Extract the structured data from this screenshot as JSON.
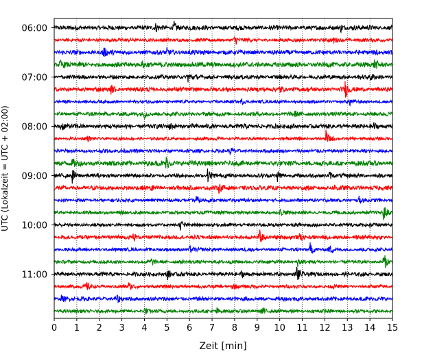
{
  "chart_data": {
    "type": "line",
    "title": "",
    "xlabel": "Zeit  [min]",
    "ylabel": "UTC (Lokalzeit = UTC + 02:00)",
    "xlim": [
      0,
      15
    ],
    "x_ticks": [
      0,
      1,
      2,
      3,
      4,
      5,
      6,
      7,
      8,
      9,
      10,
      11,
      12,
      13,
      14,
      15
    ],
    "grid": "vertical dotted",
    "legend": "none",
    "y_tick_labels": [
      "06:00",
      "07:00",
      "08:00",
      "09:00",
      "10:00",
      "11:00"
    ],
    "trace_color_cycle": [
      "#000000",
      "#ff0000",
      "#0000ff",
      "#008000"
    ],
    "row_duration_min": 15,
    "rows": [
      {
        "start": "06:00",
        "amp": 0.45,
        "events": [
          {
            "t": 5.3,
            "a": 0.9
          },
          {
            "t": 4.5,
            "a": 0.45
          },
          {
            "t": 12.7,
            "a": 0.55
          }
        ]
      },
      {
        "start": "06:15",
        "amp": 0.35,
        "events": [
          {
            "t": 8.0,
            "a": 0.8
          },
          {
            "t": 12.4,
            "a": 0.45
          }
        ]
      },
      {
        "start": "06:30",
        "amp": 0.45,
        "events": [
          {
            "t": 2.15,
            "a": 0.9
          },
          {
            "t": 5.0,
            "a": 0.55
          },
          {
            "t": 14.3,
            "a": 0.5
          }
        ]
      },
      {
        "start": "06:45",
        "amp": 0.5,
        "events": [
          {
            "t": 0.25,
            "a": 0.6
          },
          {
            "t": 3.9,
            "a": 0.55
          },
          {
            "t": 14.2,
            "a": 0.6
          }
        ]
      },
      {
        "start": "07:00",
        "amp": 0.4,
        "events": [
          {
            "t": 5.9,
            "a": 0.95
          },
          {
            "t": 14.0,
            "a": 0.55
          }
        ]
      },
      {
        "start": "07:15",
        "amp": 0.45,
        "events": [
          {
            "t": 12.9,
            "a": 1.1
          },
          {
            "t": 2.5,
            "a": 0.6
          },
          {
            "t": 10.0,
            "a": 0.5
          }
        ]
      },
      {
        "start": "07:30",
        "amp": 0.3,
        "events": [
          {
            "t": 13.1,
            "a": 0.5
          },
          {
            "t": 8.3,
            "a": 0.45
          }
        ]
      },
      {
        "start": "07:45",
        "amp": 0.4,
        "events": [
          {
            "t": 4.0,
            "a": 0.55
          },
          {
            "t": 10.6,
            "a": 0.6
          }
        ]
      },
      {
        "start": "08:00",
        "amp": 0.45,
        "events": [
          {
            "t": 0.3,
            "a": 0.6
          },
          {
            "t": 5.1,
            "a": 0.6
          },
          {
            "t": 14.1,
            "a": 0.55
          }
        ]
      },
      {
        "start": "08:15",
        "amp": 0.3,
        "events": [
          {
            "t": 12.05,
            "a": 1.2
          },
          {
            "t": 1.4,
            "a": 0.45
          }
        ]
      },
      {
        "start": "08:30",
        "amp": 0.35,
        "events": [
          {
            "t": 3.0,
            "a": 0.5
          },
          {
            "t": 7.8,
            "a": 0.45
          }
        ]
      },
      {
        "start": "08:45",
        "amp": 0.5,
        "events": [
          {
            "t": 4.95,
            "a": 0.9
          },
          {
            "t": 0.8,
            "a": 0.55
          }
        ]
      },
      {
        "start": "09:00",
        "amp": 0.4,
        "events": [
          {
            "t": 0.8,
            "a": 1.1
          },
          {
            "t": 6.8,
            "a": 0.9
          },
          {
            "t": 9.9,
            "a": 0.7
          },
          {
            "t": 12.2,
            "a": 0.5
          }
        ]
      },
      {
        "start": "09:15",
        "amp": 0.45,
        "events": [
          {
            "t": 4.3,
            "a": 0.7
          },
          {
            "t": 7.3,
            "a": 0.55
          },
          {
            "t": 12.4,
            "a": 0.5
          }
        ]
      },
      {
        "start": "09:30",
        "amp": 0.35,
        "events": [
          {
            "t": 6.3,
            "a": 0.5
          },
          {
            "t": 13.5,
            "a": 0.5
          }
        ]
      },
      {
        "start": "09:45",
        "amp": 0.35,
        "events": [
          {
            "t": 14.6,
            "a": 1.0
          },
          {
            "t": 10.0,
            "a": 0.5
          }
        ]
      },
      {
        "start": "10:00",
        "amp": 0.35,
        "events": [
          {
            "t": 5.6,
            "a": 0.6
          },
          {
            "t": 14.0,
            "a": 0.55
          }
        ]
      },
      {
        "start": "10:15",
        "amp": 0.4,
        "events": [
          {
            "t": 9.1,
            "a": 1.0
          },
          {
            "t": 3.5,
            "a": 0.55
          },
          {
            "t": 10.9,
            "a": 0.6
          }
        ]
      },
      {
        "start": "10:30",
        "amp": 0.35,
        "events": [
          {
            "t": 11.35,
            "a": 0.9
          },
          {
            "t": 12.2,
            "a": 0.6
          },
          {
            "t": 6.0,
            "a": 0.5
          }
        ]
      },
      {
        "start": "10:45",
        "amp": 0.35,
        "events": [
          {
            "t": 14.6,
            "a": 1.3
          },
          {
            "t": 10.8,
            "a": 0.6
          },
          {
            "t": 4.3,
            "a": 0.5
          }
        ]
      },
      {
        "start": "11:00",
        "amp": 0.4,
        "events": [
          {
            "t": 10.75,
            "a": 1.3
          },
          {
            "t": 5.0,
            "a": 0.8
          },
          {
            "t": 8.3,
            "a": 0.55
          }
        ]
      },
      {
        "start": "11:15",
        "amp": 0.35,
        "events": [
          {
            "t": 1.4,
            "a": 0.6
          },
          {
            "t": 3.3,
            "a": 0.55
          },
          {
            "t": 7.9,
            "a": 0.5
          }
        ]
      },
      {
        "start": "11:30",
        "amp": 0.4,
        "events": [
          {
            "t": 0.3,
            "a": 0.5
          },
          {
            "t": 2.8,
            "a": 0.45
          }
        ]
      },
      {
        "start": "11:45",
        "amp": 0.35,
        "events": [
          {
            "t": 9.2,
            "a": 0.8
          },
          {
            "t": 4.0,
            "a": 0.5
          },
          {
            "t": 7.2,
            "a": 0.5
          }
        ]
      }
    ]
  }
}
